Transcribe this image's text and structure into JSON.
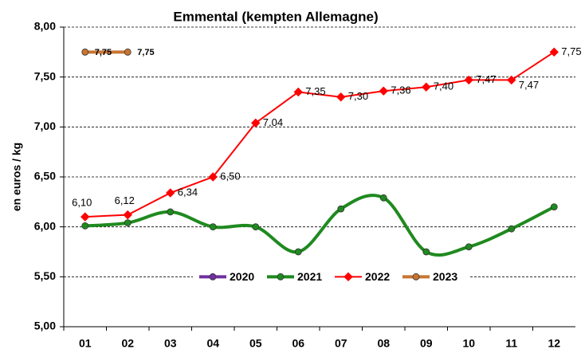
{
  "chart_data": {
    "type": "line",
    "title": "Emmental (kempten Allemagne)",
    "y_label": "en euros / kg",
    "categories": [
      "01",
      "02",
      "03",
      "04",
      "05",
      "06",
      "07",
      "08",
      "09",
      "10",
      "11",
      "12"
    ],
    "ylim": [
      5,
      8
    ],
    "yticks": [
      {
        "value": 5,
        "label": "5,00"
      },
      {
        "value": 5.5,
        "label": "5,50"
      },
      {
        "value": 6,
        "label": "6,00"
      },
      {
        "value": 6.5,
        "label": "6,50"
      },
      {
        "value": 7,
        "label": "7,00"
      },
      {
        "value": 7.5,
        "label": "7,50"
      },
      {
        "value": 8,
        "label": "8,00"
      }
    ],
    "grid": true,
    "legend": "bottom",
    "series": [
      {
        "name": "2020",
        "color": "#7030a0",
        "marker": "circle",
        "smooth": false,
        "values": [
          null,
          null,
          null,
          null,
          null,
          null,
          null,
          null,
          null,
          null,
          null,
          null
        ]
      },
      {
        "name": "2021",
        "color": "#1f8a1f",
        "marker": "circle",
        "smooth": true,
        "values": [
          6.01,
          6.04,
          6.15,
          6.0,
          6.0,
          5.75,
          6.18,
          6.29,
          5.75,
          5.8,
          5.98,
          6.2
        ]
      },
      {
        "name": "2022",
        "color": "#ff0000",
        "marker": "diamond",
        "smooth": false,
        "values": [
          6.1,
          6.12,
          6.34,
          6.5,
          7.04,
          7.35,
          7.3,
          7.36,
          7.4,
          7.47,
          7.47,
          7.75
        ],
        "value_labels": [
          "6,10",
          "6,12",
          "6,34",
          "6,50",
          "7,04",
          "7,35",
          "7,30",
          "7,36",
          "7,40",
          "7,47",
          "7,47",
          "7,75"
        ]
      },
      {
        "name": "2023",
        "color": "#c87533",
        "marker": "circle",
        "smooth": false,
        "values": [
          7.75,
          7.75,
          null,
          null,
          null,
          null,
          null,
          null,
          null,
          null,
          null,
          null
        ],
        "value_labels": [
          "7,75",
          "7,75",
          null,
          null,
          null,
          null,
          null,
          null,
          null,
          null,
          null,
          null
        ]
      }
    ]
  }
}
